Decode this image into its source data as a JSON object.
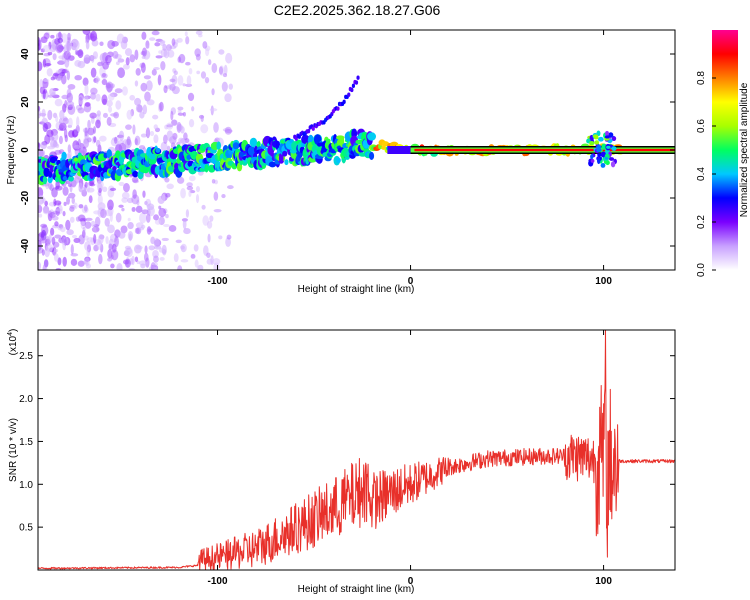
{
  "title": "C2E2.2025.362.18.27.G06",
  "chart_data": [
    {
      "type": "heatmap",
      "title": "C2E2.2025.362.18.27.G06",
      "xlabel": "Height of straight line (km)",
      "ylabel": "Frequency (Hz)",
      "xlim": [
        -193,
        137
      ],
      "ylim": [
        -50,
        50
      ],
      "xticks": [
        {
          "value": -100,
          "label": "-100"
        },
        {
          "value": 0,
          "label": "0"
        },
        {
          "value": 100,
          "label": "100"
        }
      ],
      "yticks": [
        {
          "value": -40,
          "label": "-40"
        },
        {
          "value": -20,
          "label": "-20"
        },
        {
          "value": 0,
          "label": "0"
        },
        {
          "value": 20,
          "label": "20"
        },
        {
          "value": 40,
          "label": "40"
        }
      ],
      "colorbar": {
        "label": "Normalized spectral amplitude",
        "range": [
          0,
          1
        ],
        "ticks": [
          {
            "value": 0.0,
            "label": "0.0"
          },
          {
            "value": 0.2,
            "label": "0.2"
          },
          {
            "value": 0.4,
            "label": "0.4"
          },
          {
            "value": 0.6,
            "label": "0.6"
          },
          {
            "value": 0.8,
            "label": "0.8"
          }
        ],
        "colors": [
          "#ffffff",
          "#c8a0ff",
          "#7a00ff",
          "#0000ff",
          "#00c8ff",
          "#00ff60",
          "#a8ff00",
          "#ffff00",
          "#ff8000",
          "#ff0000",
          "#ff0090"
        ]
      },
      "ridge": [
        {
          "x": -190,
          "f": -8
        },
        {
          "x": -150,
          "f": -6
        },
        {
          "x": -130,
          "f": -5
        },
        {
          "x": -100,
          "f": -3
        },
        {
          "x": -70,
          "f": -1
        },
        {
          "x": -40,
          "f": 0
        },
        {
          "x": -25,
          "f": 3
        },
        {
          "x": -10,
          "f": 1
        },
        {
          "x": 0,
          "f": 0
        },
        {
          "x": 50,
          "f": 0
        },
        {
          "x": 137,
          "f": 0
        }
      ],
      "harmonic_branch": [
        {
          "x": -60,
          "f": 5
        },
        {
          "x": -45,
          "f": 12
        },
        {
          "x": -35,
          "f": 20
        },
        {
          "x": -27,
          "f": 30
        }
      ]
    },
    {
      "type": "line",
      "xlabel": "Height of straight line (km)",
      "ylabel": "SNR (10 * v/v)",
      "yscale_note": "(x10",
      "yscale_exp": "4",
      "yscale_close": ")",
      "xlim": [
        -193,
        137
      ],
      "ylim": [
        0,
        2.8
      ],
      "xticks": [
        {
          "value": -100,
          "label": "-100"
        },
        {
          "value": 0,
          "label": "0"
        },
        {
          "value": 100,
          "label": "100"
        }
      ],
      "yticks": [
        {
          "value": 0.5,
          "label": "0.5"
        },
        {
          "value": 1.0,
          "label": "1.0"
        },
        {
          "value": 1.5,
          "label": "1.5"
        },
        {
          "value": 2.0,
          "label": "2.0"
        },
        {
          "value": 2.5,
          "label": "2.5"
        }
      ],
      "line_color": "#e8302a",
      "trend": [
        {
          "x": -193,
          "y": 0.02
        },
        {
          "x": -120,
          "y": 0.03
        },
        {
          "x": -100,
          "y": 0.08
        },
        {
          "x": -80,
          "y": 0.15
        },
        {
          "x": -60,
          "y": 0.35
        },
        {
          "x": -40,
          "y": 0.55
        },
        {
          "x": -25,
          "y": 0.75
        },
        {
          "x": -10,
          "y": 0.9
        },
        {
          "x": 5,
          "y": 1.05
        },
        {
          "x": 20,
          "y": 1.2
        },
        {
          "x": 40,
          "y": 1.3
        },
        {
          "x": 70,
          "y": 1.33
        },
        {
          "x": 85,
          "y": 1.33
        },
        {
          "x": 95,
          "y": 1.3
        },
        {
          "x": 110,
          "y": 1.27
        },
        {
          "x": 137,
          "y": 1.27
        }
      ],
      "features": [
        {
          "x": 101,
          "y": 2.8,
          "note": "peak"
        },
        {
          "x": 102,
          "y": 0.15,
          "note": "dip"
        }
      ]
    }
  ]
}
